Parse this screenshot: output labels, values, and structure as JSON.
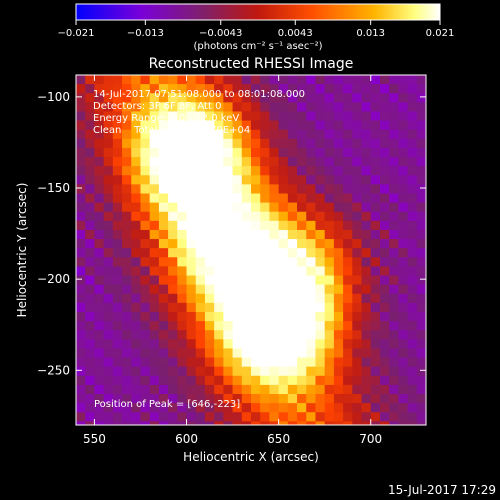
{
  "chart_data": {
    "type": "heatmap",
    "title": "Reconstructed RHESSI Image",
    "xlabel": "Heliocentric X (arcsec)",
    "ylabel": "Heliocentric Y (arcsec)",
    "xlim": [
      540,
      730
    ],
    "ylim": [
      -280,
      -88
    ],
    "x_ticks": [
      550,
      600,
      650,
      700
    ],
    "y_ticks": [
      -100,
      -150,
      -200,
      -250
    ],
    "colorbar": {
      "colormap": "hot-on-blue",
      "colors": [
        "#0000ff",
        "#8b00c8",
        "#7a1f6f",
        "#c01d14",
        "#ff4400",
        "#ffb000",
        "#ffff80",
        "#ffffff"
      ],
      "range": [
        -0.021,
        0.021
      ],
      "tick_labels": [
        "-0.021",
        "-0.013",
        "-0.0043",
        "0.0043",
        "0.013",
        "0.021"
      ],
      "units_label": "(photons cm⁻² s⁻¹ asec⁻²)"
    },
    "annotations": [
      "14-Jul-2017 07:51:08.000 to 08:01:08.000",
      "Detectors: 3F 6F 8F, Att 0",
      "Energy Range: 6.0 - 12.0 keV",
      "Clean    Total counts: 9.79E+04"
    ],
    "peak_label": "Position of Peak = [646,-223]",
    "peak_position": [
      646,
      -223
    ],
    "bright_sources": [
      {
        "x": 600,
        "y": -130,
        "level": 0.95
      },
      {
        "x": 646,
        "y": -223,
        "level": 1.0
      },
      {
        "x": 618,
        "y": -178,
        "level": 0.7
      },
      {
        "x": 660,
        "y": -190,
        "level": 0.55
      }
    ],
    "footer_timestamp": "15-Jul-2017 17:29"
  }
}
